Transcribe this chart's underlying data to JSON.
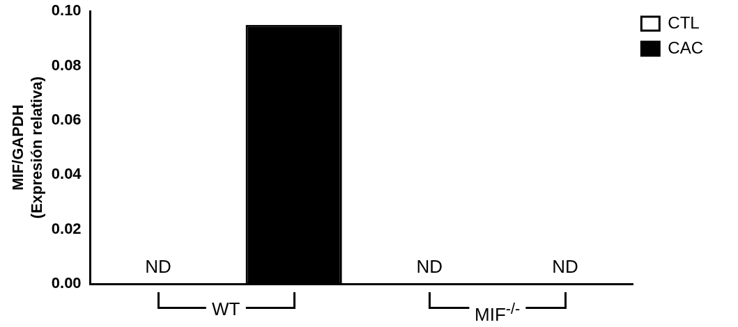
{
  "chart_data": {
    "type": "bar",
    "ylabel": "MIF/GAPDH\n(Expresión relativa)",
    "categories": [
      "WT",
      "MIF$^{-/-}$"
    ],
    "series": [
      {
        "name": "CTL",
        "color": "#ffffff",
        "values": [
          null,
          null
        ],
        "value_labels": [
          "ND",
          "ND"
        ]
      },
      {
        "name": "CAC",
        "color": "#000000",
        "values": [
          0.095,
          null
        ],
        "value_labels": [
          null,
          "ND"
        ]
      }
    ],
    "ylim": [
      0,
      0.1
    ],
    "yticks": [
      {
        "value": 0,
        "label": "0.00"
      },
      {
        "value": 0.02,
        "label": "0.02"
      },
      {
        "value": 0.04,
        "label": "0.04"
      },
      {
        "value": 0.06,
        "label": "0.06"
      },
      {
        "value": 0.08,
        "label": "0.08"
      },
      {
        "value": 0.1,
        "label": "0.10"
      }
    ],
    "grid": false,
    "legend": "top right"
  }
}
